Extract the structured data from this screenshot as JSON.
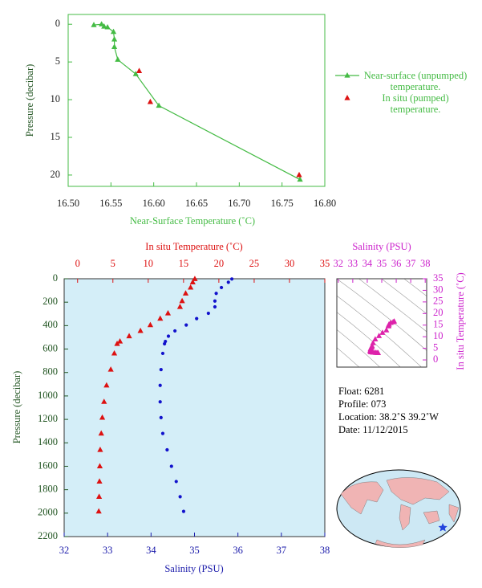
{
  "chart_data": [
    {
      "type": "line",
      "xlabel": "Near-Surface Temperature (˚C)",
      "ylabel": "Pressure (decibar)",
      "xlim": [
        16.5,
        16.8
      ],
      "xticks": [
        {
          "value": 16.5,
          "label": "16.50"
        },
        {
          "value": 16.55,
          "label": "16.55"
        },
        {
          "value": 16.6,
          "label": "16.60"
        },
        {
          "value": 16.65,
          "label": "16.65"
        },
        {
          "value": 16.7,
          "label": "16.70"
        },
        {
          "value": 16.75,
          "label": "16.75"
        },
        {
          "value": 16.8,
          "label": "16.80"
        }
      ],
      "ylim": [
        21.5,
        -1.3
      ],
      "yticks": [
        0,
        5,
        10,
        15,
        20
      ],
      "legend": "right",
      "series": [
        {
          "name": "Near-surface (unpumped) temperature.",
          "color": "#44bb44",
          "marker": "triangle",
          "line": true,
          "x": [
            16.53,
            16.539,
            16.542,
            16.546,
            16.553,
            16.554,
            16.554,
            16.558,
            16.579,
            16.606,
            16.771
          ],
          "y": [
            0.1,
            0.0,
            0.3,
            0.4,
            1.0,
            2.0,
            3.0,
            4.7,
            6.6,
            10.8,
            20.6
          ]
        },
        {
          "name": "In situ (pumped) temperature.",
          "color": "#dd1111",
          "marker": "triangle",
          "line": false,
          "x": [
            16.583,
            16.596,
            16.77
          ],
          "y": [
            6.2,
            10.3,
            20.0
          ]
        }
      ]
    },
    {
      "type": "scatter",
      "xlabel": "Salinity (PSU)",
      "x2label": "In situ Temperature (˚C)",
      "ylabel": "Pressure (decibar)",
      "xlim": [
        32,
        38
      ],
      "xticks": [
        32,
        33,
        34,
        35,
        36,
        37,
        38
      ],
      "x2lim": [
        -1.9,
        35
      ],
      "x2ticks": [
        0,
        5,
        10,
        15,
        20,
        25,
        30,
        35
      ],
      "ylim": [
        2200,
        0
      ],
      "yticks": [
        0,
        200,
        400,
        600,
        800,
        1000,
        1200,
        1400,
        1600,
        1800,
        2000,
        2200
      ],
      "background": "#d4eef8",
      "series": [
        {
          "color": "#dd1111",
          "marker": "triangle",
          "axis": "x2",
          "x": [
            16.6,
            16.3,
            16.0,
            15.3,
            14.8,
            14.5,
            12.8,
            11.7,
            10.3,
            8.9,
            7.3,
            6.0,
            5.6,
            5.2,
            4.7,
            4.1,
            3.75,
            3.5,
            3.35,
            3.2,
            3.15,
            3.1,
            3.05,
            3.0
          ],
          "y": [
            2,
            30,
            75,
            125,
            190,
            240,
            295,
            340,
            395,
            445,
            490,
            535,
            555,
            637,
            775,
            910,
            1050,
            1185,
            1320,
            1460,
            1600,
            1730,
            1860,
            1985
          ]
        },
        {
          "color": "#1111cc",
          "marker": "circle",
          "x": [
            35.86,
            35.78,
            35.62,
            35.5,
            35.47,
            35.47,
            35.32,
            35.05,
            34.81,
            34.55,
            34.4,
            34.33,
            34.31,
            34.27,
            34.23,
            34.21,
            34.21,
            34.23,
            34.27,
            34.37,
            34.47,
            34.58,
            34.67,
            34.75
          ],
          "y": [
            2,
            30,
            75,
            125,
            190,
            240,
            295,
            340,
            395,
            445,
            490,
            535,
            555,
            637,
            775,
            910,
            1050,
            1185,
            1320,
            1460,
            1600,
            1730,
            1860,
            1985
          ]
        }
      ]
    },
    {
      "type": "scatter",
      "xlabel": "Salinity (PSU)",
      "ylabel": "In situ Temperature (˚C)",
      "xlim": [
        31.9,
        38.1
      ],
      "xticks": [
        32,
        33,
        34,
        35,
        36,
        37,
        38
      ],
      "ylim": [
        -3.1,
        35
      ],
      "yticks": [
        0,
        5,
        10,
        15,
        20,
        25,
        30,
        35
      ],
      "series": [
        {
          "color": "#dd22aa",
          "marker": "triangle",
          "x": [
            35.86,
            35.78,
            35.62,
            35.5,
            35.47,
            35.47,
            35.32,
            35.05,
            34.81,
            34.55,
            34.4,
            34.33,
            34.31,
            34.27,
            34.23,
            34.21,
            34.21,
            34.23,
            34.27,
            34.37,
            34.47,
            34.58,
            34.67,
            34.75
          ],
          "y": [
            16.6,
            16.3,
            16.0,
            15.3,
            14.8,
            14.5,
            12.8,
            11.7,
            10.3,
            8.9,
            7.3,
            6.0,
            5.6,
            5.2,
            4.7,
            4.1,
            3.75,
            3.5,
            3.35,
            3.2,
            3.15,
            3.1,
            3.05,
            3.0
          ]
        }
      ]
    }
  ],
  "info": [
    "Float:  6281",
    "Profile:  073",
    "Location:  38.2˚S  39.2˚W",
    "Date:  11/12/2015"
  ]
}
